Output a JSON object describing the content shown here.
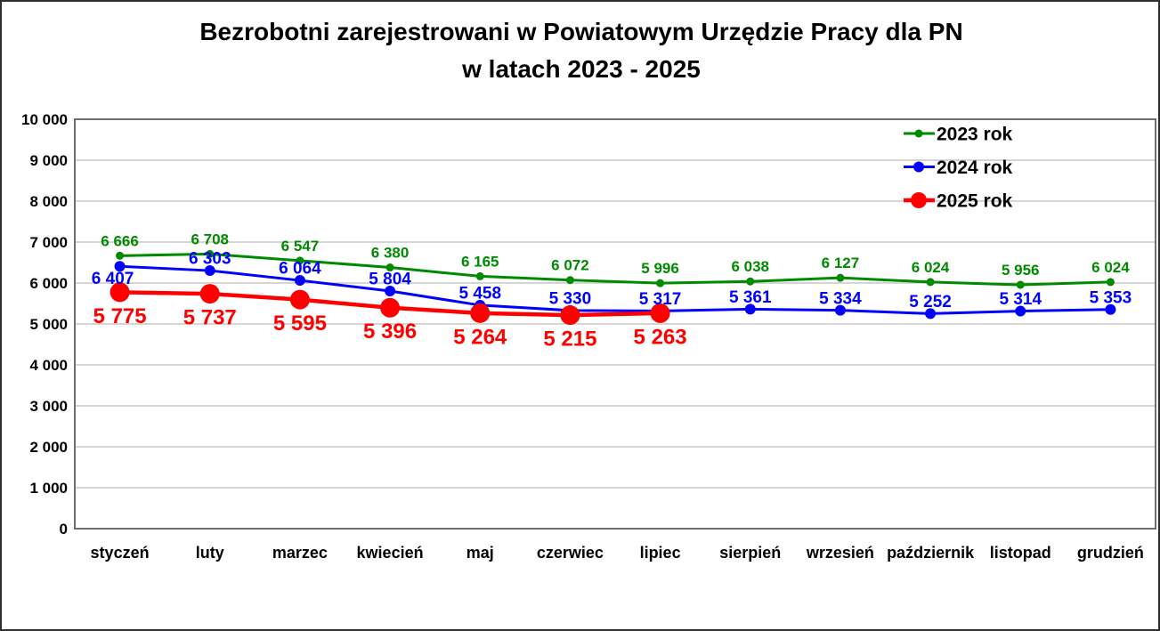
{
  "title": {
    "line1": "Bezrobotni zarejestrowani w Powiatowym Urzędzie Pracy dla PN",
    "line2": "w latach 2023 - 2025"
  },
  "chart_data": {
    "type": "line",
    "categories": [
      "styczeń",
      "luty",
      "marzec",
      "kwiecień",
      "maj",
      "czerwiec",
      "lipiec",
      "sierpień",
      "wrzesień",
      "październik",
      "listopad",
      "grudzień"
    ],
    "series": [
      {
        "name": "2023 rok",
        "color": "#008A00",
        "values": [
          6666,
          6708,
          6547,
          6380,
          6165,
          6072,
          5996,
          6038,
          6127,
          6024,
          5956,
          6024
        ],
        "labels": [
          "6 666",
          "6 708",
          "6 547",
          "6 380",
          "6 165",
          "6 072",
          "5 996",
          "6 038",
          "6 127",
          "6 024",
          "5 956",
          "6 024"
        ]
      },
      {
        "name": "2024 rok",
        "color": "#0000FF",
        "values": [
          6407,
          6303,
          6064,
          5804,
          5458,
          5330,
          5317,
          5361,
          5334,
          5252,
          5314,
          5353
        ],
        "labels": [
          "6 407",
          "6 303",
          "6 064",
          "5 804",
          "5 458",
          "5 330",
          "5 317",
          "5 361",
          "5 334",
          "5 252",
          "5 314",
          "5 353"
        ]
      },
      {
        "name": "2025 rok",
        "color": "#FF0000",
        "values": [
          5775,
          5737,
          5595,
          5396,
          5264,
          5215,
          5263
        ],
        "labels": [
          "5 775",
          "5 737",
          "5 595",
          "5 396",
          "5 264",
          "5 215",
          "5 263"
        ]
      }
    ],
    "y_axis": {
      "min": 0,
      "max": 10000,
      "step": 1000,
      "tick_labels": [
        "0",
        "1 000",
        "2 000",
        "3 000",
        "4 000",
        "5 000",
        "6 000",
        "7 000",
        "8 000",
        "9 000",
        "10 000"
      ]
    },
    "legend": {
      "position": "top-right",
      "entries": [
        "2023 rok",
        "2024 rok",
        "2025 rok"
      ]
    },
    "grid": true,
    "grid_color": "#ABABAB",
    "plot_border_color": "#6E6E6E",
    "text_color": "#000000"
  }
}
